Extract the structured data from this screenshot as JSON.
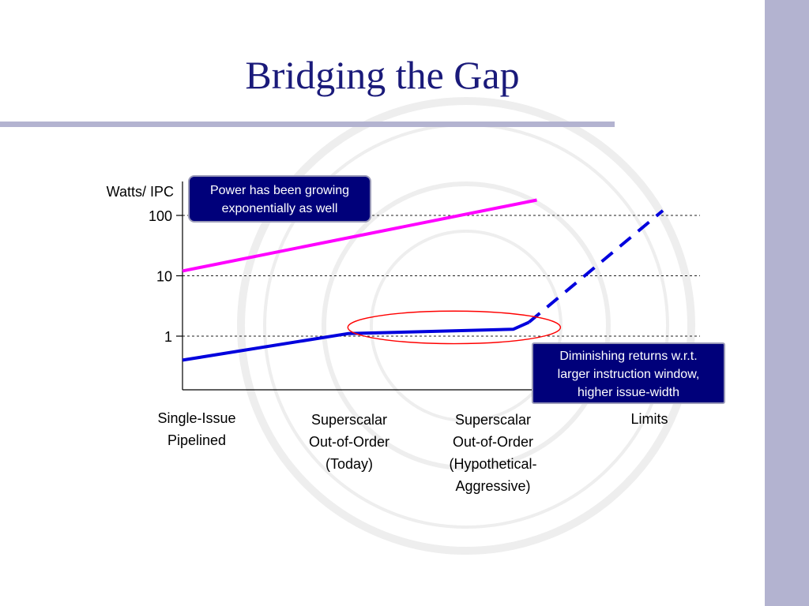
{
  "slide": {
    "title": "Bridging the Gap"
  },
  "chart_data": {
    "type": "line",
    "ylabel": "Watts/ IPC",
    "yscale": "log",
    "yticks": [
      1,
      10,
      100
    ],
    "ytick_labels": [
      "1",
      "10",
      "100"
    ],
    "grid": "dashed horizontal at ticks",
    "categories": [
      [
        "Single-Issue",
        "Pipelined"
      ],
      [
        "Superscalar",
        "Out-of-Order",
        "(Today)"
      ],
      [
        "Superscalar",
        "Out-of-Order",
        "(Hypothetical-",
        "Aggressive)"
      ],
      [
        "Limits"
      ]
    ],
    "series": [
      {
        "color": "#ff00ff",
        "style": "solid",
        "points": [
          [
            0,
            12
          ],
          [
            2.25,
            180
          ]
        ]
      },
      {
        "color": "#0000dd",
        "style": "solid",
        "points": [
          [
            0,
            0.4
          ],
          [
            1.05,
            1.1
          ],
          [
            2.1,
            1.3
          ],
          [
            2.2,
            1.7
          ]
        ]
      },
      {
        "color": "#0000dd",
        "style": "dashed",
        "points": [
          [
            2.2,
            1.7
          ],
          [
            3.05,
            120
          ]
        ]
      }
    ],
    "annotations": [
      {
        "kind": "callout",
        "lines": [
          "Power has been growing",
          "exponentially as well"
        ]
      },
      {
        "kind": "callout",
        "lines": [
          "Diminishing returns w.r.t.",
          "larger instruction window,",
          "higher issue-width"
        ]
      },
      {
        "kind": "ellipse",
        "color": "#ff0000",
        "x_range": [
          1.05,
          2.4
        ],
        "y_range": [
          0.75,
          2.6
        ]
      }
    ]
  }
}
